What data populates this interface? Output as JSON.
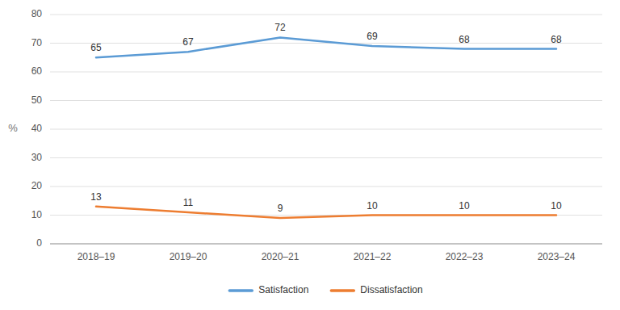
{
  "chart_data": {
    "type": "line",
    "categories": [
      "2018–19",
      "2019–20",
      "2020–21",
      "2021–22",
      "2022–23",
      "2023–24"
    ],
    "series": [
      {
        "name": "Satisfaction",
        "color": "#5B9BD5",
        "values": [
          65,
          67,
          72,
          69,
          68,
          68
        ]
      },
      {
        "name": "Dissatisfaction",
        "color": "#ED7D31",
        "values": [
          13,
          11,
          9,
          10,
          10,
          10
        ]
      }
    ],
    "y_label": "%",
    "ylim": [
      0,
      80
    ],
    "yticks": [
      0,
      10,
      20,
      30,
      40,
      50,
      60,
      70,
      80
    ],
    "grid": true,
    "data_labels": true,
    "legend": "bottom"
  }
}
